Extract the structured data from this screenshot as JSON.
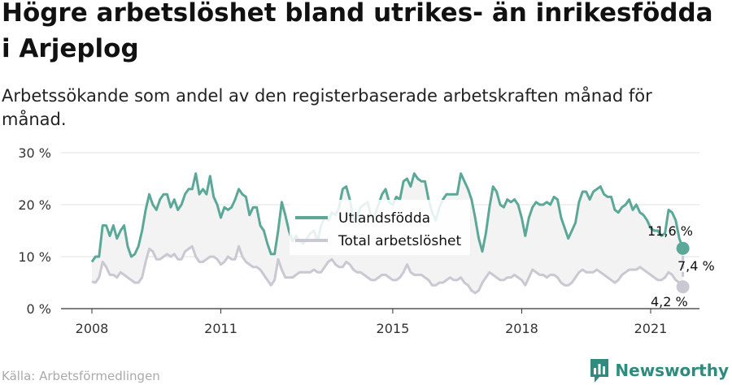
{
  "header": {
    "title": "Högre arbetslöshet bland utrikes- än inrikesfödda i Arjeplog",
    "subtitle": "Arbetssökande som andel av den registerbaserade arbetskraften månad för månad."
  },
  "footer": {
    "source": "Källa: Arbetsförmedlingen",
    "brand": "Newsworthy"
  },
  "colors": {
    "foreign": "#5ba898",
    "total": "#c9c8d3",
    "band": "#f3f3f3",
    "grid": "#e2e2e2",
    "brand": "#2e8b7d"
  },
  "annotations": {
    "foreign_end": "11,6 %",
    "total_end": "4,2 %",
    "gap": "7,4 %"
  },
  "chart_data": {
    "type": "line",
    "title": "Högre arbetslöshet bland utrikes- än inrikesfödda i Arjeplog",
    "subtitle": "Arbetssökande som andel av den registerbaserade arbetskraften månad för månad.",
    "xlabel": "",
    "ylabel": "",
    "ylim": [
      0,
      30
    ],
    "y_ticks": [
      0,
      10,
      20,
      30
    ],
    "y_tick_labels": [
      "0 %",
      "10 %",
      "20 %",
      "30 %"
    ],
    "x_ticks": [
      2008,
      2011,
      2015,
      2018,
      2021
    ],
    "x_tick_labels": [
      "2008",
      "2011",
      "2015",
      "2018",
      "2021"
    ],
    "x_unit": "year (monthly data, Jan 2008 – Jun 2021)",
    "grid": true,
    "legend_position": "center",
    "series": [
      {
        "name": "Utlandsfödda",
        "color": "#5ba898",
        "values": [
          9,
          10,
          10,
          16,
          16,
          14,
          16,
          13.5,
          15,
          16,
          12,
          10,
          10.5,
          12,
          15,
          19,
          22,
          20,
          19,
          21,
          22,
          22,
          19.5,
          21,
          19,
          20,
          22,
          23,
          23,
          26,
          22,
          23,
          22,
          25.5,
          21.5,
          20,
          17.5,
          19.5,
          19,
          19.5,
          21,
          23,
          22,
          21.5,
          18,
          19.5,
          19.5,
          16,
          15,
          12.5,
          10.5,
          10.5,
          15,
          20.5,
          18,
          15,
          13,
          14,
          13,
          12.5,
          13.5,
          14.5,
          15,
          13,
          16,
          17.5,
          17,
          18.5,
          18,
          19.5,
          23,
          23.5,
          21,
          17,
          17.5,
          19.5,
          20,
          20.5,
          17.5,
          18,
          20,
          22,
          23,
          20.5,
          20,
          21.5,
          21,
          24.5,
          25,
          23.5,
          26,
          25,
          24.5,
          24.5,
          21,
          18.5,
          17,
          19.5,
          21,
          22,
          22,
          22,
          22,
          26,
          24.5,
          23,
          21,
          17.5,
          13.5,
          11,
          14.5,
          19.5,
          23.5,
          22.5,
          20,
          19.5,
          21,
          20.5,
          21,
          20,
          17.5,
          14,
          17.5,
          19.5,
          20.5,
          20,
          20,
          20.5,
          20,
          21.5,
          21,
          17.5,
          15.5,
          13.5,
          15,
          16.5,
          20.5,
          22.5,
          22.5,
          21,
          22.5,
          23,
          23.5,
          22,
          21.5,
          21.5,
          19,
          18.5,
          19.5,
          20,
          21,
          19,
          20,
          18.5,
          18,
          17,
          15.5,
          15,
          15,
          14,
          14.5,
          19,
          18.5,
          17,
          13.5,
          11.6
        ]
      },
      {
        "name": "Total arbetslöshet",
        "color": "#c9c8d3",
        "values": [
          5.2,
          5,
          6,
          9,
          8,
          6.5,
          6.5,
          6,
          7,
          6.5,
          6,
          5.5,
          5,
          5,
          6,
          9,
          11.5,
          11,
          9.5,
          9.5,
          10,
          10.5,
          10,
          10.5,
          9.5,
          9.5,
          11,
          11.5,
          12,
          10,
          9,
          9,
          9.5,
          10,
          10,
          9.5,
          8.5,
          9,
          10,
          9.5,
          9.5,
          12,
          10,
          9,
          8.5,
          8,
          8,
          7.5,
          6.5,
          5.5,
          4.5,
          5.5,
          9.5,
          7.5,
          6,
          6,
          6,
          6.5,
          7,
          7,
          7,
          7,
          7.5,
          7,
          7,
          8,
          9,
          9.5,
          8.5,
          8,
          8,
          9,
          8.5,
          7.5,
          7,
          7,
          6.5,
          6,
          5.5,
          5.5,
          6,
          6.5,
          6.5,
          6,
          5.5,
          5.5,
          6,
          7,
          8.5,
          7,
          6.5,
          6.5,
          6.5,
          6,
          5.5,
          4.5,
          4.5,
          5,
          5,
          5.5,
          6,
          5.5,
          5.5,
          6,
          5,
          4.5,
          3.5,
          3,
          3.5,
          5,
          6,
          7,
          6.5,
          6,
          5.5,
          5.5,
          6,
          6,
          6.5,
          6,
          5.5,
          4.5,
          6,
          7.5,
          7,
          6.5,
          6.5,
          6,
          6.5,
          6.5,
          6,
          5,
          4.5,
          4.5,
          5,
          6,
          7,
          7.5,
          7,
          7,
          7,
          7.5,
          7,
          6.5,
          6,
          5.5,
          5,
          5.5,
          6.5,
          7,
          7.5,
          7.5,
          7.5,
          8,
          7.5,
          7,
          6.5,
          6,
          5.5,
          5.5,
          6,
          7,
          6.5,
          5.5,
          5,
          4.2
        ]
      }
    ]
  }
}
